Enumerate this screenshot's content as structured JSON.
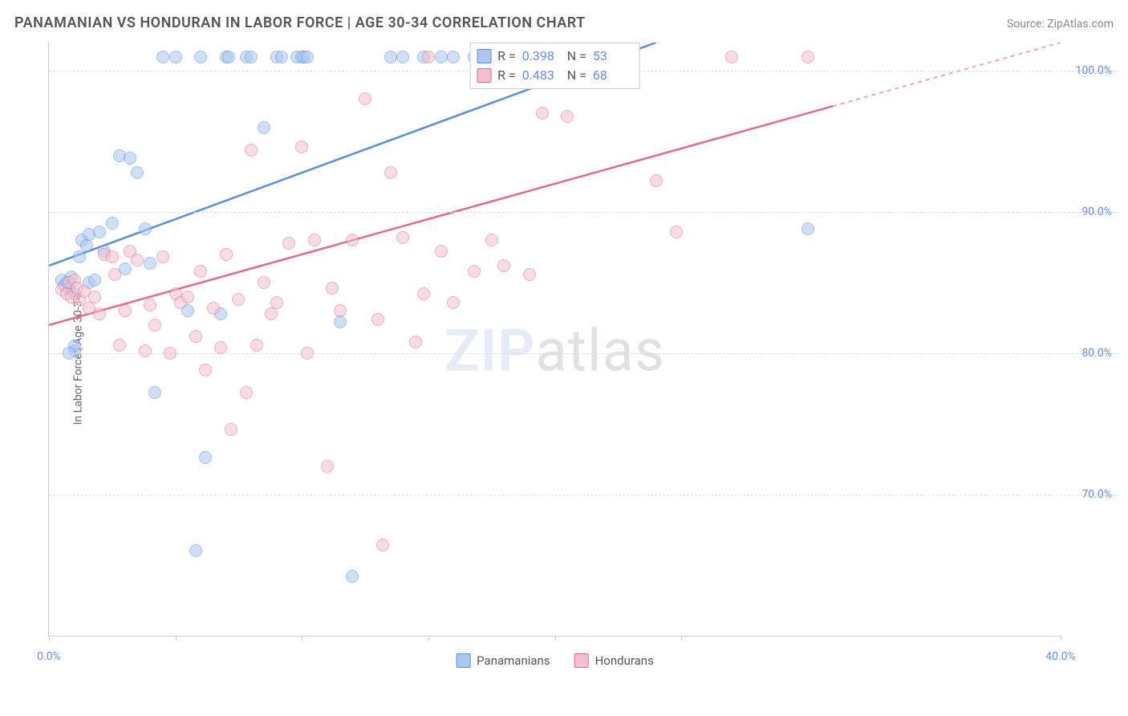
{
  "header": {
    "title": "PANAMANIAN VS HONDURAN IN LABOR FORCE | AGE 30-34 CORRELATION CHART",
    "source_prefix": "Source: ",
    "source_name": "ZipAtlas.com"
  },
  "watermark": {
    "left": "ZIP",
    "right": "atlas"
  },
  "chart": {
    "type": "scatter",
    "ylabel": "In Labor Force | Age 30-34",
    "xlim": [
      0,
      40
    ],
    "ylim": [
      60,
      102
    ],
    "xticks": [
      0,
      5,
      10,
      15,
      20,
      25,
      40
    ],
    "xtick_labels": {
      "0": "0.0%",
      "40": "40.0%"
    },
    "yticks": [
      70,
      80,
      90,
      100
    ],
    "ytick_labels": {
      "70": "70.0%",
      "80": "80.0%",
      "90": "90.0%",
      "100": "100.0%"
    },
    "grid_color": "#dddddd",
    "axis_color": "#cccccc",
    "tick_label_color": "#6a8fd8",
    "background_color": "#ffffff",
    "marker_radius": 8,
    "marker_opacity": 0.55,
    "series": [
      {
        "id": "panamanians",
        "label": "Panamanians",
        "color_fill": "#a9c8f0",
        "color_stroke": "#5a8fd6",
        "r": "0.398",
        "n": "53",
        "trend": {
          "x1": 0,
          "y1": 86.2,
          "x2": 24,
          "y2": 102,
          "dash_after_x": 24
        },
        "points": [
          [
            0.5,
            85.2
          ],
          [
            0.6,
            84.8
          ],
          [
            0.7,
            85.0
          ],
          [
            0.8,
            84.6
          ],
          [
            0.9,
            85.4
          ],
          [
            1.0,
            84.2
          ],
          [
            1.0,
            80.2
          ],
          [
            1.0,
            80.5
          ],
          [
            1.2,
            86.8
          ],
          [
            1.3,
            88.0
          ],
          [
            1.5,
            87.6
          ],
          [
            1.6,
            88.4
          ],
          [
            1.6,
            85.0
          ],
          [
            1.8,
            85.2
          ],
          [
            2.0,
            88.6
          ],
          [
            2.2,
            87.2
          ],
          [
            2.5,
            89.2
          ],
          [
            0.8,
            80.0
          ],
          [
            2.8,
            94.0
          ],
          [
            3.0,
            86.0
          ],
          [
            3.2,
            93.8
          ],
          [
            3.5,
            92.8
          ],
          [
            3.8,
            88.8
          ],
          [
            4.0,
            86.4
          ],
          [
            4.2,
            77.2
          ],
          [
            4.5,
            101.0
          ],
          [
            5.0,
            101.0
          ],
          [
            5.5,
            83.0
          ],
          [
            5.8,
            66.0
          ],
          [
            6.0,
            101.0
          ],
          [
            6.2,
            72.6
          ],
          [
            7.0,
            101.0
          ],
          [
            7.1,
            101.0
          ],
          [
            7.8,
            101.0
          ],
          [
            8.0,
            101.0
          ],
          [
            8.5,
            96.0
          ],
          [
            9.0,
            101.0
          ],
          [
            9.2,
            101.0
          ],
          [
            9.8,
            101.0
          ],
          [
            10.0,
            101.0
          ],
          [
            10.1,
            101.0
          ],
          [
            10.2,
            101.0
          ],
          [
            11.5,
            82.2
          ],
          [
            12.0,
            64.2
          ],
          [
            13.5,
            101.0
          ],
          [
            14.0,
            101.0
          ],
          [
            14.8,
            101.0
          ],
          [
            15.5,
            101.0
          ],
          [
            16.0,
            101.0
          ],
          [
            16.8,
            101.0
          ],
          [
            18.0,
            101.0
          ],
          [
            30.0,
            88.8
          ],
          [
            6.8,
            82.8
          ]
        ]
      },
      {
        "id": "hondurans",
        "label": "Hondurans",
        "color_fill": "#f4c0cf",
        "color_stroke": "#e16b8f",
        "r": "0.483",
        "n": "68",
        "trend": {
          "x1": 0,
          "y1": 82.0,
          "x2": 40,
          "y2": 102,
          "dash_after_x": 31
        },
        "points": [
          [
            0.5,
            84.5
          ],
          [
            0.7,
            84.2
          ],
          [
            0.8,
            85.0
          ],
          [
            0.9,
            84.0
          ],
          [
            1.0,
            85.2
          ],
          [
            1.1,
            84.6
          ],
          [
            1.2,
            83.8
          ],
          [
            1.4,
            84.4
          ],
          [
            1.6,
            83.2
          ],
          [
            1.8,
            84.0
          ],
          [
            2.0,
            82.8
          ],
          [
            2.2,
            87.0
          ],
          [
            2.5,
            86.8
          ],
          [
            2.6,
            85.6
          ],
          [
            2.8,
            80.6
          ],
          [
            3.0,
            83.0
          ],
          [
            3.2,
            87.2
          ],
          [
            3.5,
            86.6
          ],
          [
            3.8,
            80.2
          ],
          [
            4.0,
            83.4
          ],
          [
            4.2,
            82.0
          ],
          [
            4.5,
            86.8
          ],
          [
            4.8,
            80.0
          ],
          [
            5.0,
            84.2
          ],
          [
            5.2,
            83.6
          ],
          [
            5.5,
            84.0
          ],
          [
            5.8,
            81.2
          ],
          [
            6.0,
            85.8
          ],
          [
            6.2,
            78.8
          ],
          [
            6.5,
            83.2
          ],
          [
            6.8,
            80.4
          ],
          [
            7.0,
            87.0
          ],
          [
            7.2,
            74.6
          ],
          [
            7.5,
            83.8
          ],
          [
            7.8,
            77.2
          ],
          [
            8.0,
            94.4
          ],
          [
            8.2,
            80.6
          ],
          [
            8.5,
            85.0
          ],
          [
            8.8,
            82.8
          ],
          [
            9.0,
            83.6
          ],
          [
            9.5,
            87.8
          ],
          [
            10.0,
            94.6
          ],
          [
            10.2,
            80.0
          ],
          [
            10.5,
            88.0
          ],
          [
            11.0,
            72.0
          ],
          [
            11.2,
            84.6
          ],
          [
            11.5,
            83.0
          ],
          [
            12.0,
            88.0
          ],
          [
            12.5,
            98.0
          ],
          [
            13.0,
            82.4
          ],
          [
            13.2,
            66.4
          ],
          [
            13.5,
            92.8
          ],
          [
            14.0,
            88.2
          ],
          [
            14.5,
            80.8
          ],
          [
            14.8,
            84.2
          ],
          [
            15.0,
            101.0
          ],
          [
            15.5,
            87.2
          ],
          [
            16.0,
            83.6
          ],
          [
            16.8,
            85.8
          ],
          [
            17.5,
            88.0
          ],
          [
            18.0,
            86.2
          ],
          [
            19.0,
            85.6
          ],
          [
            19.5,
            97.0
          ],
          [
            20.5,
            96.8
          ],
          [
            24.0,
            92.2
          ],
          [
            24.8,
            88.6
          ],
          [
            27.0,
            101.0
          ],
          [
            30.0,
            101.0
          ]
        ]
      }
    ],
    "legend_bottom_labels": [
      "Panamanians",
      "Hondurans"
    ]
  }
}
